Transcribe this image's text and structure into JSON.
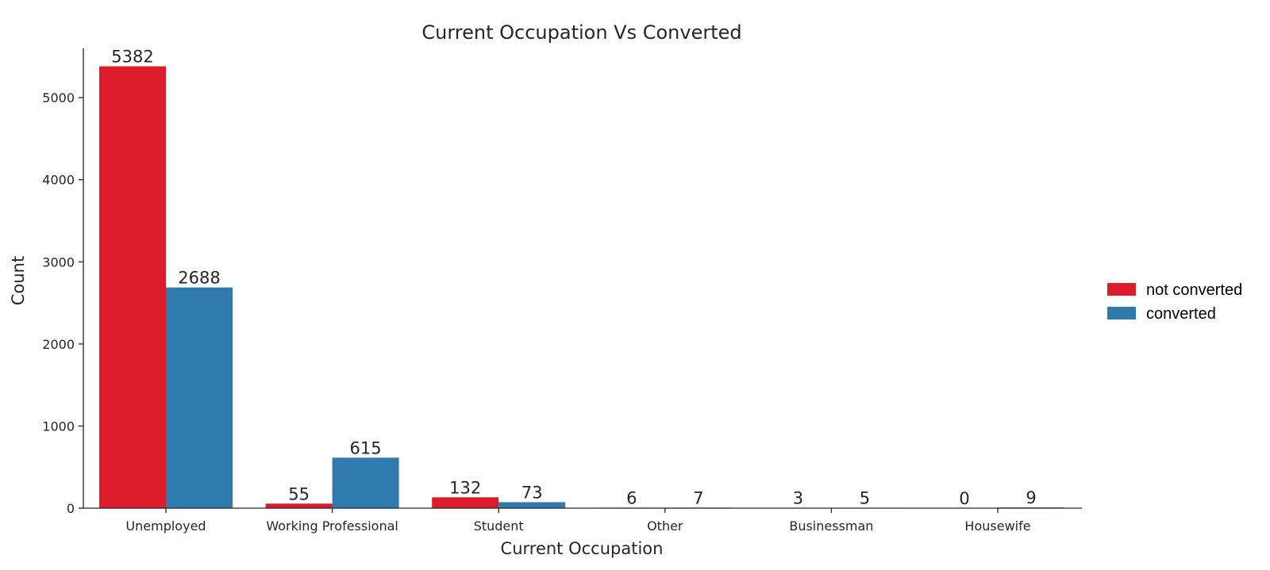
{
  "chart_data": {
    "type": "bar",
    "title": "Current Occupation Vs Converted",
    "xlabel": "Current Occupation",
    "ylabel": "Count",
    "categories": [
      "Unemployed",
      "Working Professional",
      "Student",
      "Other",
      "Businessman",
      "Housewife"
    ],
    "series": [
      {
        "name": "not converted",
        "values": [
          5382,
          55,
          132,
          6,
          3,
          0
        ],
        "color": "#dc1c2b"
      },
      {
        "name": "converted",
        "values": [
          2688,
          615,
          73,
          7,
          5,
          9
        ],
        "color": "#2f7bb0"
      }
    ],
    "data_labels": [
      [
        "5382",
        "55",
        "132",
        "6",
        "3",
        "0"
      ],
      [
        "2688",
        "615",
        "73",
        "7",
        "5",
        "9"
      ]
    ],
    "yticks": [
      0,
      1000,
      2000,
      3000,
      4000,
      5000
    ],
    "ylim": [
      0,
      5600
    ],
    "grid": false,
    "legend_position": "right"
  }
}
